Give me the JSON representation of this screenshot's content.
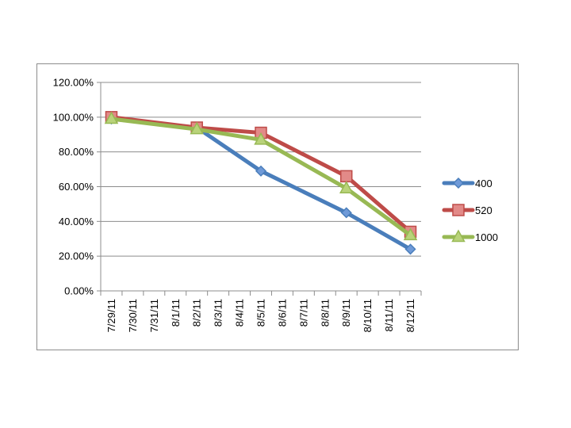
{
  "chart_data": {
    "type": "line",
    "title": "",
    "xlabel": "",
    "ylabel": "",
    "categories": [
      "7/29/11",
      "7/30/11",
      "7/31/11",
      "8/1/11",
      "8/2/11",
      "8/3/11",
      "8/4/11",
      "8/5/11",
      "8/6/11",
      "8/7/11",
      "8/8/11",
      "8/9/11",
      "8/10/11",
      "8/11/11",
      "8/12/11"
    ],
    "y_ticks": [
      "0.00%",
      "20.00%",
      "40.00%",
      "60.00%",
      "80.00%",
      "100.00%",
      "120.00%"
    ],
    "ylim": [
      0,
      1.2
    ],
    "grid": true,
    "legend_position": "right",
    "series": [
      {
        "name": "400",
        "color": "#4a7ebb",
        "marker": "diamond",
        "points": [
          {
            "x": "7/29/11",
            "y": 0.99
          },
          {
            "x": "8/2/11",
            "y": 0.94
          },
          {
            "x": "8/5/11",
            "y": 0.69
          },
          {
            "x": "8/9/11",
            "y": 0.45
          },
          {
            "x": "8/12/11",
            "y": 0.24
          }
        ]
      },
      {
        "name": "520",
        "color": "#be4b48",
        "marker": "square",
        "points": [
          {
            "x": "7/29/11",
            "y": 1.0
          },
          {
            "x": "8/2/11",
            "y": 0.94
          },
          {
            "x": "8/5/11",
            "y": 0.91
          },
          {
            "x": "8/9/11",
            "y": 0.66
          },
          {
            "x": "8/12/11",
            "y": 0.34
          }
        ]
      },
      {
        "name": "1000",
        "color": "#98b954",
        "marker": "triangle",
        "points": [
          {
            "x": "7/29/11",
            "y": 0.99
          },
          {
            "x": "8/2/11",
            "y": 0.93
          },
          {
            "x": "8/5/11",
            "y": 0.87
          },
          {
            "x": "8/9/11",
            "y": 0.59
          },
          {
            "x": "8/12/11",
            "y": 0.32
          }
        ]
      }
    ]
  }
}
